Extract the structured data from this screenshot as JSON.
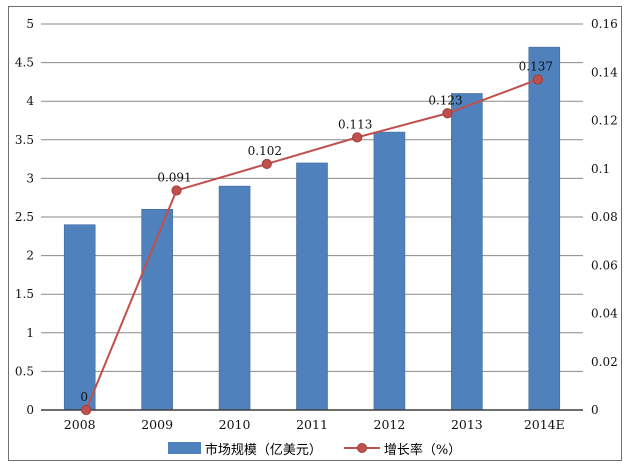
{
  "chart_data": {
    "type": "bar",
    "combo": "bar+line",
    "title": "",
    "categories": [
      "2008",
      "2009",
      "2010",
      "2011",
      "2012",
      "2013",
      "2014E"
    ],
    "series": [
      {
        "name": "市场规模（亿美元）",
        "chart_type": "bar",
        "axis": "left",
        "color": "#4F81BD",
        "values": [
          2.4,
          2.6,
          2.9,
          3.2,
          3.6,
          4.1,
          4.7
        ]
      },
      {
        "name": "增长率（%）",
        "chart_type": "line",
        "axis": "right",
        "color": "#C0504D",
        "marker": "circle",
        "values": [
          0,
          0.091,
          0.102,
          0.113,
          0.123,
          0.137
        ],
        "point_labels": [
          "0",
          "0.091",
          "0.102",
          "0.113",
          "0.123",
          "0.137"
        ]
      }
    ],
    "left_axis": {
      "min": 0,
      "max": 5,
      "step": 0.5,
      "tick_labels": [
        "5",
        "4.5",
        "4",
        "3.5",
        "3",
        "2.5",
        "2",
        "1.5",
        "1",
        "0.5",
        "0"
      ]
    },
    "right_axis": {
      "min": 0,
      "max": 0.16,
      "step": 0.02,
      "tick_labels": [
        "0.16",
        "0.14",
        "0.12",
        "0.1",
        "0.08",
        "0.06",
        "0.04",
        "0.02",
        "0"
      ]
    },
    "grid": "horizontal",
    "grid_color": "#8a8a8a",
    "axis_line_color": "#3f3f3f",
    "legend_position": "bottom",
    "frame_border_color": "#6f6f6f",
    "background": "#ffffff"
  }
}
